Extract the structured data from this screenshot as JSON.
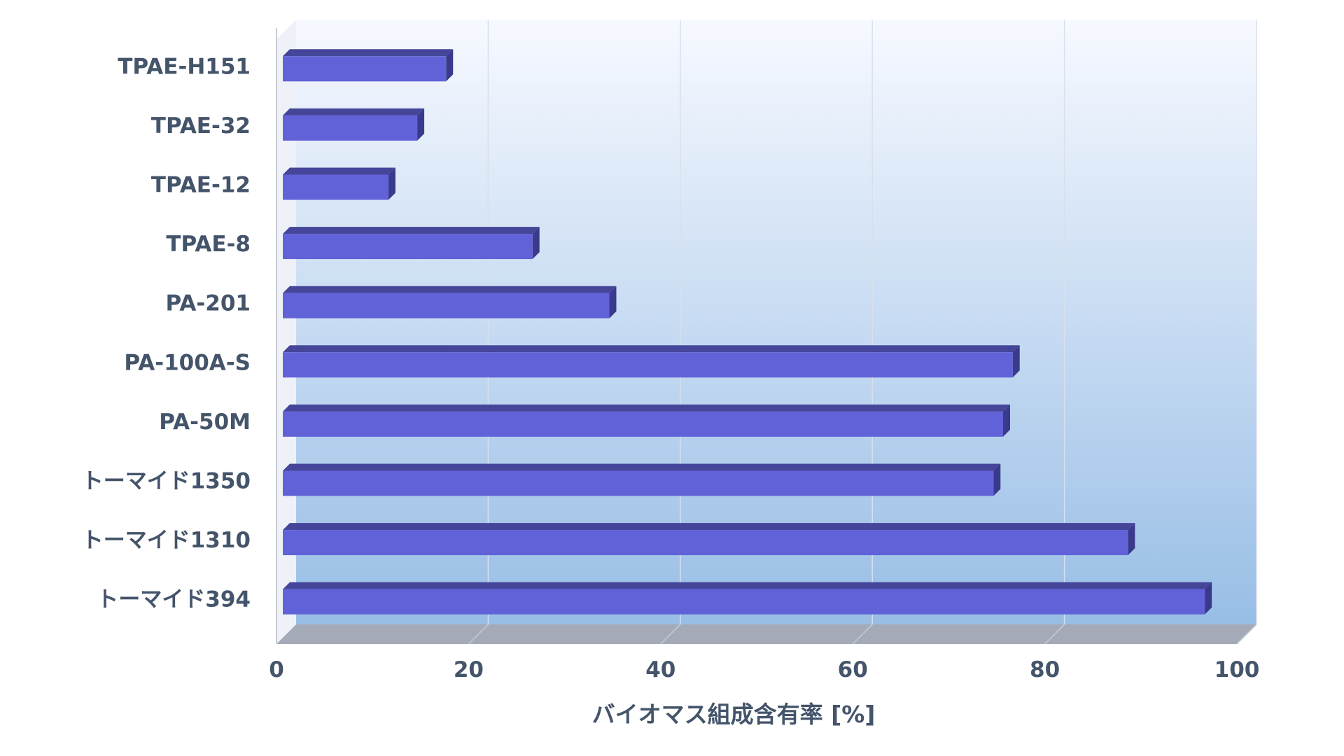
{
  "chart_data": {
    "type": "bar",
    "orientation": "horizontal",
    "style": "3d",
    "categories": [
      "TPAE-H151",
      "TPAE-32",
      "TPAE-12",
      "TPAE-8",
      "PA-201",
      "PA-100A-S",
      "PA-50M",
      "トーマイド1350",
      "トーマイド1310",
      "トーマイド394"
    ],
    "values": [
      17,
      14,
      11,
      26,
      34,
      76,
      75,
      74,
      88,
      96
    ],
    "xlabel": "バイオマス組成含有率 [%]",
    "ylabel": "",
    "xlim": [
      0,
      100
    ],
    "xticks": [
      "0",
      "20",
      "40",
      "60",
      "80",
      "100"
    ],
    "grid": true,
    "colors": {
      "bar_front": "#6262d8",
      "bar_top": "#45459a",
      "bar_side": "#3a3a8c",
      "floor": "#a4aab8",
      "wall_top": "#f7f9ff",
      "wall_bottom": "#98bee6",
      "gridline": "#d8e0ec",
      "text": "#44546a"
    }
  }
}
